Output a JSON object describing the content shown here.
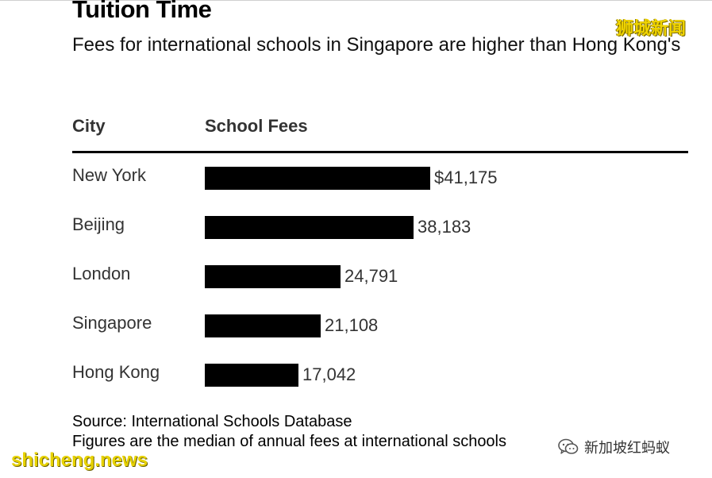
{
  "chart_data": {
    "type": "bar",
    "orientation": "horizontal",
    "title": "Tuition Time",
    "subtitle": "Fees for international schools in Singapore are higher than Hong Kong's",
    "column_headers": [
      "City",
      "School Fees"
    ],
    "categories": [
      "New York",
      "Beijing",
      "London",
      "Singapore",
      "Hong Kong"
    ],
    "values": [
      41175,
      38183,
      24791,
      21108,
      17042
    ],
    "value_labels": [
      "$41,175",
      "38,183",
      "24,791",
      "21,108",
      "17,042"
    ],
    "bar_color": "#000000",
    "grid": false,
    "source": "Source: International Schools Database",
    "note": "Figures are the median of annual fees at international schools"
  },
  "watermarks": {
    "top_right": "狮城新闻",
    "bottom_left": "shicheng.news",
    "bottom_right": "新加坡红蚂蚁",
    "bottom_right_icon": "wechat-icon"
  }
}
